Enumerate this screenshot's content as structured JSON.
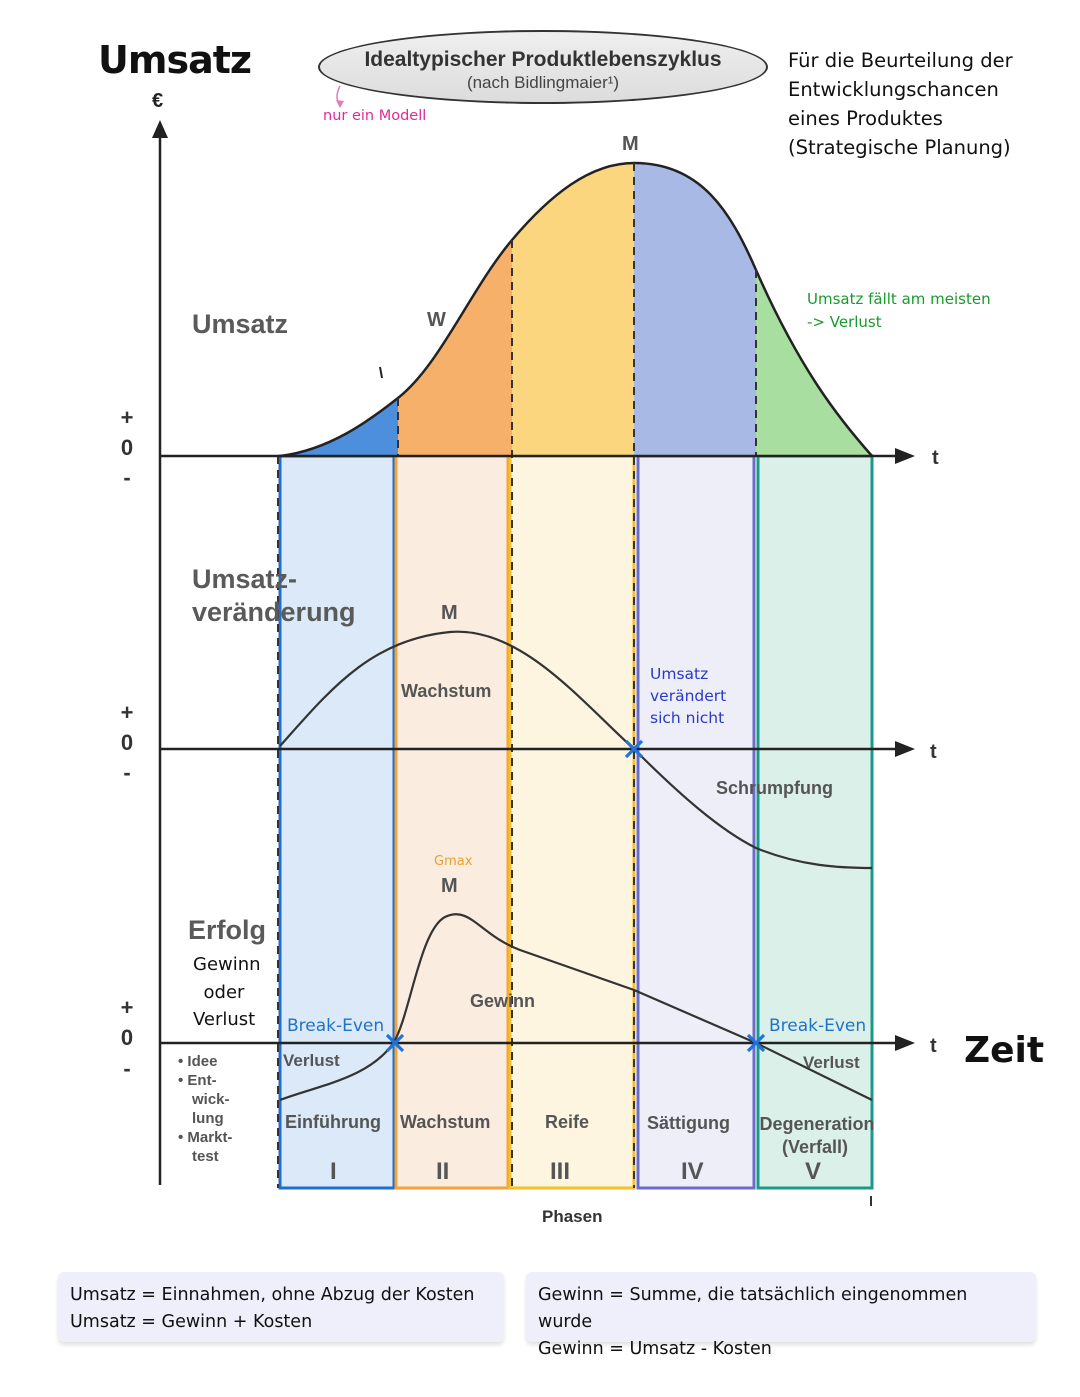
{
  "header": {
    "title": "Umsatz",
    "currency": "€",
    "ellipse_title": "Idealtypischer Produktlebenszyklus",
    "ellipse_subtitle": "(nach Bidlingmaier¹)",
    "note_model": "nur ein Modell",
    "note_right": [
      "Für die Beurteilung der",
      "Entwicklungschancen",
      "eines Produktes",
      "(Strategische Planung)"
    ]
  },
  "sections": {
    "umsatz": {
      "label": "Umsatz",
      "max_label": "M",
      "inflection_label": "W"
    },
    "veraenderung": {
      "label_line1": "Umsatz-",
      "label_line2": "veränderung",
      "max_label": "M",
      "growth": "Wachstum",
      "shrink": "Schrumpfung"
    },
    "erfolg": {
      "label": "Erfolg",
      "sub1": "Gewinn",
      "sub2": "oder",
      "sub3": "Verlust",
      "gmax": "Gmax",
      "max_label": "M",
      "gewinn": "Gewinn"
    }
  },
  "annotations": {
    "umsatz_faellt": [
      "Umsatz fällt am meisten",
      "-> Verlust"
    ],
    "umsatz_unveraendert": [
      "Umsatz",
      "verändert",
      "sich nicht"
    ],
    "break_even_1": "Break-Even",
    "break_even_2": "Break-Even",
    "verlust_1": "Verlust",
    "verlust_2": "Verlust"
  },
  "axes": {
    "plus": "+",
    "zero": "0",
    "minus": "-",
    "t_label": "t",
    "zeit": "Zeit",
    "phasen": "Phasen"
  },
  "pre_phase_items": [
    "Idee",
    "Ent-",
    "wick-",
    "lung",
    "Markt-",
    "test"
  ],
  "phases": [
    {
      "name": "Einführung",
      "roman": "I",
      "color": "#1f6fd0",
      "fill": "#d9e8f8"
    },
    {
      "name": "Wachstum",
      "roman": "II",
      "color": "#f3a43c",
      "fill": "#fcebdc"
    },
    {
      "name": "Reife",
      "roman": "III",
      "color": "#f5c02a",
      "fill": "#fdf3d6"
    },
    {
      "name": "Sättigung",
      "roman": "IV",
      "color": "#6c6cc8",
      "fill": "#e9e9f6"
    },
    {
      "name": "Degeneration",
      "name2": "(Verfall)",
      "roman": "V",
      "color": "#1a9a8a",
      "fill": "#d8efe9"
    }
  ],
  "formulas": {
    "left": [
      "Umsatz = Einnahmen, ohne Abzug der Kosten",
      "Umsatz = Gewinn + Kosten"
    ],
    "right": [
      "Gewinn = Summe, die tatsächlich eingenommen wurde",
      "Gewinn = Umsatz - Kosten"
    ]
  }
}
